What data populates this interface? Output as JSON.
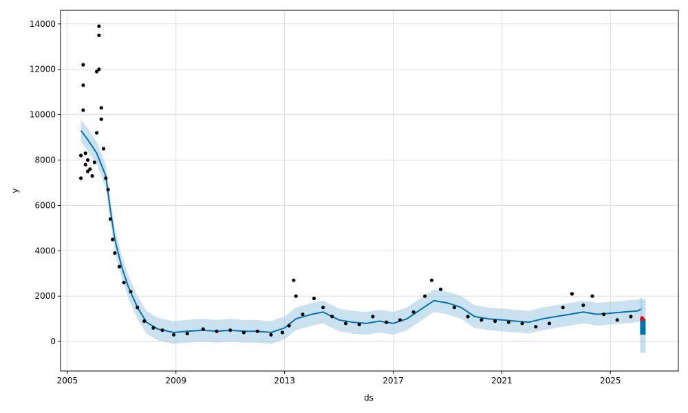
{
  "chart_data": {
    "type": "line",
    "xlabel": "ds",
    "ylabel": "y",
    "x_ticks": [
      "2005",
      "2009",
      "2013",
      "2017",
      "2021",
      "2025"
    ],
    "y_ticks": [
      0,
      2000,
      4000,
      6000,
      8000,
      10000,
      12000,
      14000
    ],
    "xlim": [
      "2004-10",
      "2027-07"
    ],
    "ylim": [
      -1300,
      14600
    ],
    "grid": true,
    "colors": {
      "observed": "#000000",
      "forecast": "#0072B2",
      "interval": "#9ECAE1",
      "highlight": "#FF0000"
    },
    "observed_points": [
      {
        "x": "2005-07",
        "y": 7200
      },
      {
        "x": "2005-07",
        "y": 8200
      },
      {
        "x": "2005-08",
        "y": 12200
      },
      {
        "x": "2005-08",
        "y": 11300
      },
      {
        "x": "2005-08",
        "y": 10200
      },
      {
        "x": "2005-09",
        "y": 7800
      },
      {
        "x": "2005-09",
        "y": 8300
      },
      {
        "x": "2005-10",
        "y": 7500
      },
      {
        "x": "2005-10",
        "y": 8000
      },
      {
        "x": "2005-11",
        "y": 7600
      },
      {
        "x": "2005-12",
        "y": 7300
      },
      {
        "x": "2006-01",
        "y": 7900
      },
      {
        "x": "2006-02",
        "y": 9200
      },
      {
        "x": "2006-02",
        "y": 11900
      },
      {
        "x": "2006-03",
        "y": 13900
      },
      {
        "x": "2006-03",
        "y": 13500
      },
      {
        "x": "2006-03",
        "y": 12000
      },
      {
        "x": "2006-04",
        "y": 10300
      },
      {
        "x": "2006-04",
        "y": 9800
      },
      {
        "x": "2006-05",
        "y": 8500
      },
      {
        "x": "2006-06",
        "y": 7200
      },
      {
        "x": "2006-07",
        "y": 6700
      },
      {
        "x": "2006-08",
        "y": 5400
      },
      {
        "x": "2006-09",
        "y": 4500
      },
      {
        "x": "2006-10",
        "y": 3900
      },
      {
        "x": "2006-12",
        "y": 3300
      },
      {
        "x": "2007-02",
        "y": 2600
      },
      {
        "x": "2007-05",
        "y": 2200
      },
      {
        "x": "2007-08",
        "y": 1500
      },
      {
        "x": "2007-11",
        "y": 900
      },
      {
        "x": "2008-03",
        "y": 600
      },
      {
        "x": "2008-07",
        "y": 500
      },
      {
        "x": "2008-12",
        "y": 300
      },
      {
        "x": "2009-06",
        "y": 350
      },
      {
        "x": "2010-01",
        "y": 550
      },
      {
        "x": "2010-07",
        "y": 450
      },
      {
        "x": "2011-01",
        "y": 500
      },
      {
        "x": "2011-07",
        "y": 400
      },
      {
        "x": "2012-01",
        "y": 450
      },
      {
        "x": "2012-07",
        "y": 300
      },
      {
        "x": "2012-12",
        "y": 400
      },
      {
        "x": "2013-03",
        "y": 700
      },
      {
        "x": "2013-05",
        "y": 2700
      },
      {
        "x": "2013-06",
        "y": 2000
      },
      {
        "x": "2013-09",
        "y": 1200
      },
      {
        "x": "2014-02",
        "y": 1900
      },
      {
        "x": "2014-06",
        "y": 1500
      },
      {
        "x": "2014-10",
        "y": 1100
      },
      {
        "x": "2015-04",
        "y": 800
      },
      {
        "x": "2015-10",
        "y": 750
      },
      {
        "x": "2016-04",
        "y": 1100
      },
      {
        "x": "2016-10",
        "y": 850
      },
      {
        "x": "2017-04",
        "y": 950
      },
      {
        "x": "2017-10",
        "y": 1300
      },
      {
        "x": "2018-03",
        "y": 2000
      },
      {
        "x": "2018-06",
        "y": 2700
      },
      {
        "x": "2018-10",
        "y": 2300
      },
      {
        "x": "2019-04",
        "y": 1500
      },
      {
        "x": "2019-10",
        "y": 1100
      },
      {
        "x": "2020-04",
        "y": 950
      },
      {
        "x": "2020-10",
        "y": 900
      },
      {
        "x": "2021-04",
        "y": 850
      },
      {
        "x": "2021-10",
        "y": 800
      },
      {
        "x": "2022-04",
        "y": 650
      },
      {
        "x": "2022-10",
        "y": 800
      },
      {
        "x": "2023-04",
        "y": 1500
      },
      {
        "x": "2023-08",
        "y": 2100
      },
      {
        "x": "2024-01",
        "y": 1600
      },
      {
        "x": "2024-05",
        "y": 2000
      },
      {
        "x": "2024-10",
        "y": 1200
      },
      {
        "x": "2025-04",
        "y": 950
      },
      {
        "x": "2025-10",
        "y": 1100
      },
      {
        "x": "2026-03",
        "y": 1050
      }
    ],
    "forecast_points": [
      {
        "x": "2005-07",
        "y": 9300
      },
      {
        "x": "2005-10",
        "y": 8900
      },
      {
        "x": "2006-02",
        "y": 8300
      },
      {
        "x": "2006-06",
        "y": 7300
      },
      {
        "x": "2006-08",
        "y": 5800
      },
      {
        "x": "2006-10",
        "y": 4500
      },
      {
        "x": "2007-01",
        "y": 3300
      },
      {
        "x": "2007-04",
        "y": 2400
      },
      {
        "x": "2007-08",
        "y": 1500
      },
      {
        "x": "2007-12",
        "y": 850
      },
      {
        "x": "2008-05",
        "y": 550
      },
      {
        "x": "2008-12",
        "y": 400
      },
      {
        "x": "2009-06",
        "y": 450
      },
      {
        "x": "2010-01",
        "y": 500
      },
      {
        "x": "2010-07",
        "y": 450
      },
      {
        "x": "2011-01",
        "y": 500
      },
      {
        "x": "2011-07",
        "y": 450
      },
      {
        "x": "2012-01",
        "y": 450
      },
      {
        "x": "2012-07",
        "y": 400
      },
      {
        "x": "2013-01",
        "y": 600
      },
      {
        "x": "2013-06",
        "y": 1000
      },
      {
        "x": "2014-01",
        "y": 1200
      },
      {
        "x": "2014-06",
        "y": 1300
      },
      {
        "x": "2015-01",
        "y": 950
      },
      {
        "x": "2015-07",
        "y": 850
      },
      {
        "x": "2016-01",
        "y": 800
      },
      {
        "x": "2016-07",
        "y": 900
      },
      {
        "x": "2017-01",
        "y": 800
      },
      {
        "x": "2017-07",
        "y": 1000
      },
      {
        "x": "2018-01",
        "y": 1400
      },
      {
        "x": "2018-07",
        "y": 1800
      },
      {
        "x": "2019-01",
        "y": 1700
      },
      {
        "x": "2019-07",
        "y": 1500
      },
      {
        "x": "2020-01",
        "y": 1100
      },
      {
        "x": "2020-07",
        "y": 1000
      },
      {
        "x": "2021-01",
        "y": 950
      },
      {
        "x": "2021-07",
        "y": 900
      },
      {
        "x": "2022-01",
        "y": 850
      },
      {
        "x": "2022-07",
        "y": 1000
      },
      {
        "x": "2023-01",
        "y": 1100
      },
      {
        "x": "2023-07",
        "y": 1200
      },
      {
        "x": "2024-01",
        "y": 1300
      },
      {
        "x": "2024-07",
        "y": 1200
      },
      {
        "x": "2025-01",
        "y": 1250
      },
      {
        "x": "2025-07",
        "y": 1300
      },
      {
        "x": "2026-01",
        "y": 1350
      },
      {
        "x": "2026-03",
        "y": 1450
      }
    ],
    "interval_width": 500,
    "forecast_tail": {
      "x": "2026-03",
      "yhat": [
        1000,
        300
      ],
      "interval": [
        1850,
        -500
      ]
    },
    "highlight_point": {
      "x": "2026-03",
      "y": 1000
    }
  }
}
